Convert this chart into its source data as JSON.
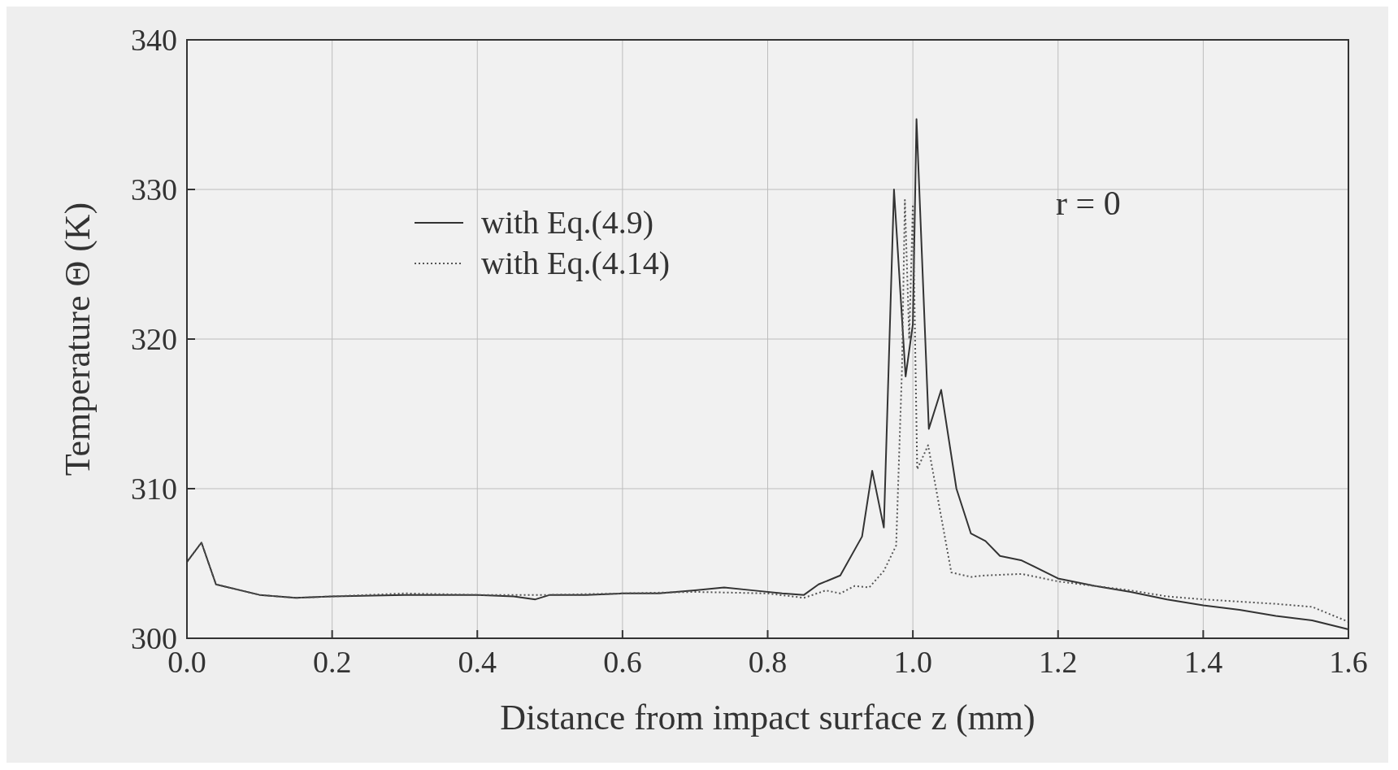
{
  "chart_data": {
    "type": "line",
    "xlabel": "Distance from impact surface z (mm)",
    "ylabel": "Temperature Θ (K)",
    "xlim": [
      0,
      1.6
    ],
    "xticks": [
      {
        "value": 0,
        "label": "0.0"
      },
      0.2,
      0.4,
      0.6,
      0.8,
      {
        "value": 1,
        "label": "1.0"
      },
      1.2,
      1.4,
      1.6
    ],
    "ylim": [
      300,
      340
    ],
    "yticks": [
      300,
      310,
      320,
      330,
      340
    ],
    "grid": true,
    "legend": "top left",
    "annotations": [
      "r = 0"
    ],
    "series": [
      {
        "name": "with Eq.(4.9)",
        "color": "#333333",
        "line_style": "solid",
        "x": [
          0,
          0.02,
          0.04,
          0.1,
          0.15,
          0.2,
          0.3,
          0.4,
          0.45,
          0.48,
          0.5,
          0.55,
          0.6,
          0.65,
          0.7,
          0.74,
          0.78,
          0.82,
          0.85,
          0.87,
          0.9,
          0.93,
          0.944,
          0.96,
          0.974,
          0.99,
          1.0,
          1.005,
          1.022,
          1.039,
          1.06,
          1.08,
          1.1,
          1.12,
          1.15,
          1.2,
          1.25,
          1.3,
          1.35,
          1.4,
          1.45,
          1.5,
          1.55,
          1.6
        ],
        "values": [
          305.1,
          306.4,
          303.6,
          302.9,
          302.7,
          302.8,
          302.9,
          302.9,
          302.8,
          302.6,
          302.9,
          302.9,
          303.0,
          303.0,
          303.2,
          303.4,
          303.2,
          303.0,
          302.9,
          303.6,
          304.2,
          306.8,
          311.2,
          307.4,
          330.0,
          317.5,
          321.0,
          334.7,
          314.0,
          316.6,
          310.0,
          307.0,
          306.5,
          305.5,
          305.2,
          304.0,
          303.5,
          303.1,
          302.6,
          302.2,
          301.9,
          301.5,
          301.2,
          300.6
        ]
      },
      {
        "name": "with Eq.(4.14)",
        "color": "#555555",
        "line_style": "dotted",
        "x": [
          0,
          0.02,
          0.04,
          0.1,
          0.15,
          0.2,
          0.3,
          0.4,
          0.5,
          0.6,
          0.7,
          0.8,
          0.85,
          0.88,
          0.9,
          0.92,
          0.94,
          0.96,
          0.977,
          0.985,
          0.989,
          0.995,
          1.0,
          1.006,
          1.021,
          1.053,
          1.08,
          1.1,
          1.15,
          1.2,
          1.3,
          1.35,
          1.4,
          1.5,
          1.55,
          1.6
        ],
        "values": [
          305.1,
          306.4,
          303.6,
          302.9,
          302.7,
          302.8,
          303.0,
          302.9,
          302.9,
          303.0,
          303.1,
          303.0,
          302.7,
          303.2,
          303.0,
          303.5,
          303.4,
          304.5,
          306.2,
          318.0,
          329.3,
          320.0,
          329.0,
          311.3,
          312.9,
          304.4,
          304.1,
          304.2,
          304.3,
          303.8,
          303.2,
          302.8,
          302.6,
          302.3,
          302.1,
          301.1
        ]
      }
    ]
  }
}
